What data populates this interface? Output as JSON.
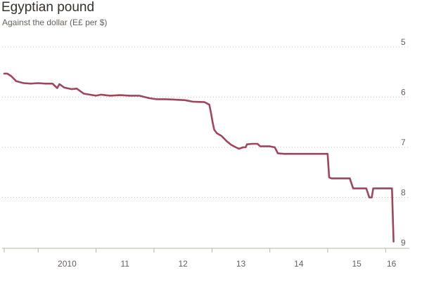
{
  "chart_data": {
    "type": "line",
    "title": "Egyptian pound",
    "subtitle": "Against the dollar (E£ per $)",
    "y_inverted": true,
    "ylim": [
      5,
      9
    ],
    "y_ticks": [
      5,
      6,
      7,
      8,
      9
    ],
    "y_tick_labels": [
      "5",
      "6",
      "7",
      "8",
      "9"
    ],
    "x_range": [
      "2009-06-01",
      "2016-03-15"
    ],
    "x_ticks": [
      {
        "label": "2010",
        "date": "2010-01-01"
      },
      {
        "label": "11",
        "date": "2011-01-01"
      },
      {
        "label": "12",
        "date": "2012-01-01"
      },
      {
        "label": "13",
        "date": "2013-01-01"
      },
      {
        "label": "14",
        "date": "2014-01-01"
      },
      {
        "label": "15",
        "date": "2015-01-01"
      },
      {
        "label": "16",
        "date": "2016-01-01"
      }
    ],
    "grid": "horizontal-dotted",
    "series": [
      {
        "color": "#a0455e",
        "points": [
          [
            "2009-06-01",
            5.53
          ],
          [
            "2009-06-20",
            5.53
          ],
          [
            "2009-07-15",
            5.58
          ],
          [
            "2009-08-15",
            5.68
          ],
          [
            "2009-10-01",
            5.72
          ],
          [
            "2009-11-15",
            5.73
          ],
          [
            "2010-01-01",
            5.72
          ],
          [
            "2010-02-15",
            5.73
          ],
          [
            "2010-04-01",
            5.73
          ],
          [
            "2010-05-01",
            5.82
          ],
          [
            "2010-05-15",
            5.74
          ],
          [
            "2010-06-15",
            5.81
          ],
          [
            "2010-08-01",
            5.84
          ],
          [
            "2010-09-01",
            5.83
          ],
          [
            "2010-10-15",
            5.93
          ],
          [
            "2011-01-01",
            5.97
          ],
          [
            "2011-02-01",
            5.95
          ],
          [
            "2011-04-01",
            5.97
          ],
          [
            "2011-06-01",
            5.96
          ],
          [
            "2011-08-01",
            5.97
          ],
          [
            "2011-10-01",
            5.97
          ],
          [
            "2011-12-01",
            6.02
          ],
          [
            "2012-01-15",
            6.04
          ],
          [
            "2012-03-15",
            6.04
          ],
          [
            "2012-05-15",
            6.05
          ],
          [
            "2012-07-15",
            6.06
          ],
          [
            "2012-09-01",
            6.09
          ],
          [
            "2012-11-15",
            6.1
          ],
          [
            "2012-12-15",
            6.15
          ],
          [
            "2012-12-25",
            6.3
          ],
          [
            "2013-01-05",
            6.5
          ],
          [
            "2013-01-15",
            6.65
          ],
          [
            "2013-02-01",
            6.72
          ],
          [
            "2013-03-01",
            6.77
          ],
          [
            "2013-04-01",
            6.87
          ],
          [
            "2013-05-01",
            6.95
          ],
          [
            "2013-06-01",
            7.0
          ],
          [
            "2013-06-20",
            7.03
          ],
          [
            "2013-07-15",
            7.0
          ],
          [
            "2013-08-01",
            7.0
          ],
          [
            "2013-08-10",
            6.94
          ],
          [
            "2013-09-15",
            6.93
          ],
          [
            "2013-10-15",
            6.93
          ],
          [
            "2013-11-01",
            6.98
          ],
          [
            "2014-01-01",
            6.98
          ],
          [
            "2014-02-01",
            7.0
          ],
          [
            "2014-02-20",
            7.12
          ],
          [
            "2014-04-01",
            7.13
          ],
          [
            "2014-09-01",
            7.13
          ],
          [
            "2014-12-31",
            7.13
          ],
          [
            "2015-01-10",
            7.6
          ],
          [
            "2015-01-25",
            7.62
          ],
          [
            "2015-05-20",
            7.62
          ],
          [
            "2015-06-10",
            7.82
          ],
          [
            "2015-09-01",
            7.82
          ],
          [
            "2015-09-20",
            8.0
          ],
          [
            "2015-10-05",
            8.0
          ],
          [
            "2015-10-15",
            7.82
          ],
          [
            "2016-02-10",
            7.82
          ],
          [
            "2016-02-20",
            8.88
          ]
        ]
      }
    ]
  }
}
